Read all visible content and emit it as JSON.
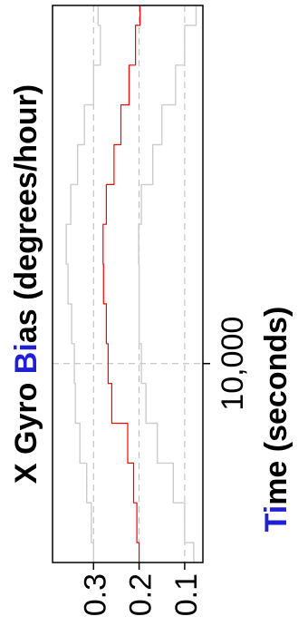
{
  "chart_data": {
    "type": "line",
    "title": "",
    "ylabel": "X Gyro Bias (degrees/hour)",
    "xlabel": {
      "parts": [
        {
          "text": "Ti",
          "color": "#1f1fd6"
        },
        {
          "text": "me (seconds)",
          "color": "#000000"
        }
      ]
    },
    "ylabel_parts": [
      {
        "text": "X Gyro ",
        "color": "#000000"
      },
      {
        "text": "B",
        "color": "#1f1fd6"
      },
      {
        "text": "i",
        "color": "#1f1fd6"
      },
      {
        "text": "as (degrees/hour)",
        "color": "#000000"
      }
    ],
    "x_ticks": [
      {
        "value": 10000,
        "label": "10,000"
      }
    ],
    "y_ticks": [
      {
        "value": 0.3,
        "label": "0.3"
      },
      {
        "value": 0.2,
        "label": "0.2"
      },
      {
        "value": 0.1,
        "label": "0.1"
      }
    ],
    "xlim": [
      0,
      28000
    ],
    "ylim": [
      0.06,
      0.39
    ],
    "grid": true,
    "orientation": "rotated-90-ccw",
    "series": [
      {
        "role": "estimate",
        "color": "#ff0000",
        "x": [
          0,
          2000,
          4000,
          6000,
          8000,
          10000,
          12000,
          14000,
          16000,
          18000,
          20000,
          22000,
          24000,
          26000,
          28000
        ],
        "y": [
          0.2,
          0.205,
          0.212,
          0.225,
          0.26,
          0.268,
          0.272,
          0.278,
          0.279,
          0.272,
          0.255,
          0.24,
          0.222,
          0.208,
          0.198
        ]
      },
      {
        "role": "upper-bound",
        "color": "#cccccc",
        "x": [
          0,
          2000,
          4000,
          6000,
          8000,
          10000,
          12000,
          14000,
          16000,
          18000,
          20000,
          22000,
          24000,
          26000,
          28000
        ],
        "y": [
          0.3,
          0.305,
          0.315,
          0.33,
          0.34,
          0.342,
          0.348,
          0.356,
          0.36,
          0.35,
          0.335,
          0.32,
          0.3,
          0.285,
          0.29
        ]
      },
      {
        "role": "lower-bound",
        "color": "#cccccc",
        "x": [
          0,
          2000,
          4000,
          6000,
          8000,
          10000,
          12000,
          14000,
          16000,
          18000,
          20000,
          22000,
          24000,
          26000,
          28000
        ],
        "y": [
          0.08,
          0.1,
          0.125,
          0.16,
          0.185,
          0.195,
          0.2,
          0.2,
          0.201,
          0.195,
          0.17,
          0.15,
          0.12,
          0.1,
          0.075
        ]
      }
    ]
  }
}
